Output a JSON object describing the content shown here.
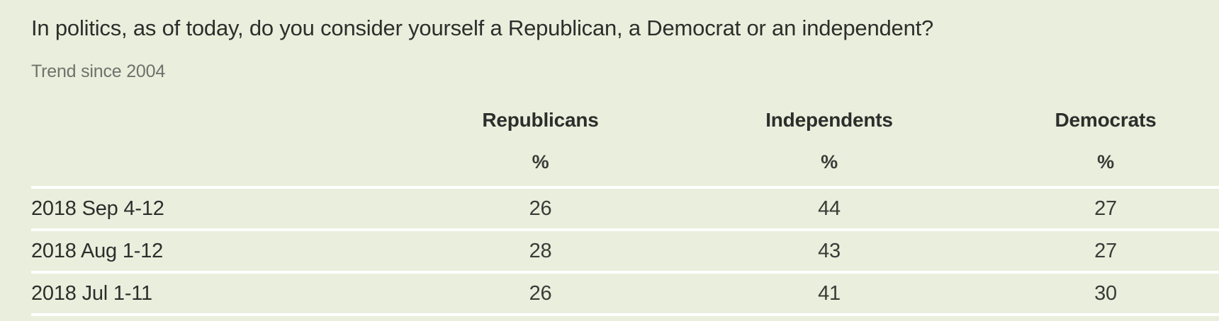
{
  "chart_data": {
    "type": "table",
    "title": "In politics, as of today, do you consider yourself a Republican, a Democrat or an independent?",
    "subtitle": "Trend since 2004",
    "column_headers": [
      "Republicans",
      "Independents",
      "Democrats"
    ],
    "unit_row": [
      "%",
      "%",
      "%"
    ],
    "row_labels": [
      "2018 Sep 4-12",
      "2018 Aug 1-12",
      "2018 Jul 1-11"
    ],
    "rows": [
      [
        26,
        44,
        27
      ],
      [
        28,
        43,
        27
      ],
      [
        26,
        41,
        30
      ]
    ]
  },
  "colors": {
    "background": "#e9efdc",
    "title_text": "#2d2e2c",
    "subtitle_text": "#6f716c",
    "value_text": "#3a3b38",
    "separator": "#ffffff"
  }
}
